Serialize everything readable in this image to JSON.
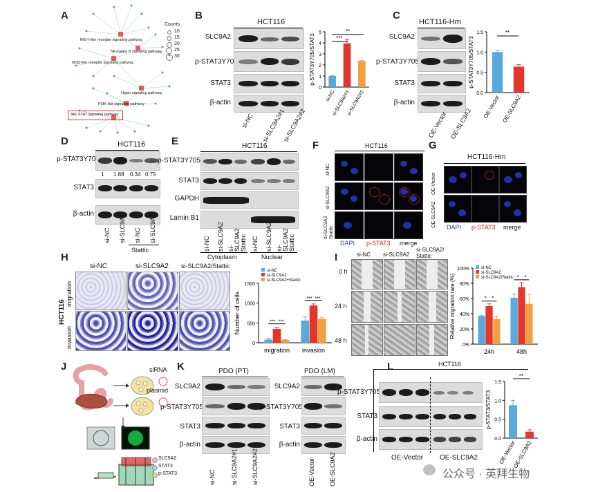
{
  "panels": [
    "A",
    "B",
    "C",
    "D",
    "E",
    "F",
    "G",
    "H",
    "I",
    "J",
    "K",
    "L"
  ],
  "panel_a": {
    "counts_title": "Counts",
    "counts_values": [
      "10",
      "15",
      "20",
      "25",
      "30"
    ],
    "pathways": [
      "RIG-I-like receptor signaling pathway",
      "NF-kappa B signaling pathway",
      "NOD-like receptor signaling pathway",
      "Hippo signaling pathway",
      "PI3K-Akt signaling pathway",
      "JAK-STAT signaling pathway"
    ]
  },
  "panel_b": {
    "title": "HCT116",
    "rows": [
      "SLC9A2",
      "p-STAT3Y705",
      "STAT3",
      "β-actin"
    ],
    "lanes": [
      "si-NC",
      "si-SLC9A2#1",
      "si-SLC9A2#2"
    ],
    "sig": [
      "**",
      "***"
    ]
  },
  "panel_c": {
    "title": "HCT116-Hm",
    "rows": [
      "SLC9A2",
      "p-STAT3Y705",
      "STAT3",
      "β-actin"
    ],
    "lanes": [
      "OE-Vector",
      "OE-SLC9A2"
    ],
    "sig": [
      "**"
    ]
  },
  "panel_d": {
    "title": "HCT116",
    "rows": [
      "p-STAT3Y705",
      "STAT3",
      "β-actin"
    ],
    "quant": [
      "1",
      "1.88",
      "0.34",
      "0.75"
    ],
    "lanes": [
      "si-NC",
      "si-SLC9A2",
      "si-NC",
      "si-SLC9A2"
    ],
    "group": "Stattic"
  },
  "panel_e": {
    "title": "HCT116",
    "rows": [
      "p-STAT3Y705",
      "STAT3",
      "GAPDH",
      "Lamin B1"
    ],
    "lanes": [
      "si-NC",
      "si-SLC9A2",
      "si-SLC9A2 Stattic",
      "si-NC",
      "si-SLC9A2",
      "si-SLC9A2 Stattic"
    ],
    "groups": [
      "Cytoplasm",
      "Nuclear"
    ]
  },
  "panel_f": {
    "title": "HCT116",
    "rows": [
      "si-NC",
      "si-SLC9A2",
      "si-SLC9A2 Stattic"
    ],
    "stains": [
      "DAPI",
      "p-STAT3",
      "merge"
    ]
  },
  "panel_g": {
    "title": "HCT116-Hm",
    "rows": [
      "OE-Vector",
      "OE-SLC9A2"
    ],
    "stains": [
      "DAPI",
      "p-STAT3",
      "merge"
    ]
  },
  "panel_h": {
    "cols": [
      "si-NC",
      "si-SLC9A2",
      "si-SLC9A2/Stattic"
    ],
    "rows": [
      "migration",
      "invasion"
    ],
    "cell_line": "HCT116"
  },
  "panel_i": {
    "cols": [
      "si-NC",
      "si-SLC9A2",
      "si-SLC9A2/ Stattic"
    ],
    "times": [
      "0 h",
      "24 h",
      "48 h"
    ]
  },
  "panel_j": {
    "labels": [
      "siRNA",
      "plasmid"
    ],
    "legend": [
      "SLC9A2",
      "STAT3",
      "p-STAT3"
    ]
  },
  "panel_k": {
    "groups": [
      "PDO (PT)",
      "PDO (LM)"
    ],
    "rows": [
      "SLC9A2",
      "p-STAT3Y705",
      "STAT3",
      "β-actin"
    ],
    "lanes_pt": [
      "si-NC",
      "si-SLC9A2#1",
      "si-SLC9A2#2"
    ],
    "lanes_lm": [
      "OE-Vector",
      "OE-SLC9A2"
    ]
  },
  "panel_l": {
    "title": "HCT116",
    "rows": [
      "p-STAT3Y705",
      "STAT3",
      "β-actin"
    ],
    "groups": [
      "OE-Vector",
      "OE-SLC9A2"
    ],
    "sig": [
      "**"
    ]
  },
  "watermark": "公众号 · 英拜生物",
  "colors": {
    "blue": "#5aa9dc",
    "red": "#e2382b",
    "orange": "#f0a040"
  },
  "chart_data": [
    {
      "type": "bar",
      "panel": "B",
      "ylabel": "p-STAT3Y705/STAT3",
      "ylim": [
        0,
        5
      ],
      "yticks": [
        "0",
        "1",
        "2",
        "3",
        "4",
        "5"
      ],
      "categories": [
        "si-NC",
        "si-SLC9A2#1",
        "si-SLC9A2#2"
      ],
      "values": [
        1.0,
        3.95,
        2.35
      ],
      "errors": [
        0.05,
        0.35,
        0.05
      ],
      "colors": [
        "#5aa9dc",
        "#e2382b",
        "#f0a040"
      ]
    },
    {
      "type": "bar",
      "panel": "C",
      "ylabel": "p-STAT3Y705/STAT3",
      "ylim": [
        0,
        1.5
      ],
      "yticks": [
        "0.0",
        "0.5",
        "1.0",
        "1.5"
      ],
      "categories": [
        "OE-Vector",
        "OE-SLC9A2"
      ],
      "values": [
        1.0,
        0.64
      ],
      "errors": [
        0.03,
        0.05
      ],
      "colors": [
        "#5aa9dc",
        "#e2382b"
      ]
    },
    {
      "type": "bar",
      "panel": "H",
      "ylabel": "Number of cells",
      "ylim": [
        0,
        1500
      ],
      "yticks": [
        "0",
        "500",
        "1000",
        "1500"
      ],
      "categories": [
        "migration",
        "invasion"
      ],
      "series": [
        {
          "name": "si-NC",
          "values": [
            80,
            560
          ],
          "errors": [
            30,
            90
          ]
        },
        {
          "name": "si-SLC9A2",
          "values": [
            350,
            940
          ],
          "errors": [
            40,
            40
          ]
        },
        {
          "name": "si-SLC9A2+Stattic",
          "values": [
            70,
            600
          ],
          "errors": [
            10,
            30
          ]
        }
      ],
      "colors": [
        "#5aa9dc",
        "#e2382b",
        "#f0a040"
      ],
      "sig_labels": [
        "***",
        "***",
        "***",
        "***"
      ]
    },
    {
      "type": "bar",
      "panel": "I",
      "ylabel": "Relative migration rate (%)",
      "ylim": [
        0,
        100
      ],
      "yticks": [
        "0%",
        "20%",
        "40%",
        "60%",
        "80%",
        "100%"
      ],
      "categories": [
        "24h",
        "48h"
      ],
      "series": [
        {
          "name": "si-NC",
          "values": [
            37,
            61
          ],
          "errors": [
            1,
            5
          ]
        },
        {
          "name": "si-SLC9A2",
          "values": [
            50,
            75
          ],
          "errors": [
            3,
            6
          ]
        },
        {
          "name": "si-SLC9A2/Stattic",
          "values": [
            33,
            53
          ],
          "errors": [
            4,
            12
          ]
        }
      ],
      "colors": [
        "#5aa9dc",
        "#e2382b",
        "#f0a040"
      ],
      "sig_labels": [
        "*",
        "*",
        "*",
        "*"
      ]
    },
    {
      "type": "bar",
      "panel": "L",
      "ylabel": "p-STAT3/STAT3",
      "ylim": [
        0,
        1.5
      ],
      "yticks": [
        "0.0",
        "0.5",
        "1.0",
        "1.5"
      ],
      "categories": [
        "OE-Vector",
        "OE-SLC9A2"
      ],
      "values": [
        0.87,
        0.17
      ],
      "errors": [
        0.13,
        0.05
      ],
      "colors": [
        "#5aa9dc",
        "#e2382b"
      ],
      "sig_labels": [
        "**"
      ]
    }
  ]
}
